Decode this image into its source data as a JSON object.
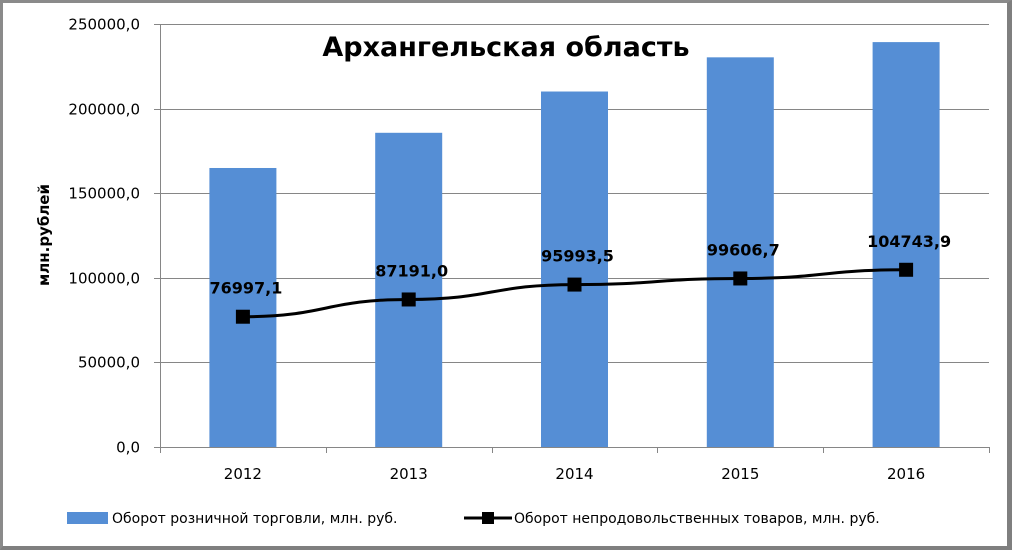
{
  "chart_data": {
    "type": "bar",
    "title": "Архангельская область",
    "xlabel": "",
    "ylabel": "млн.рублей",
    "ylim": [
      0,
      250000
    ],
    "yticks": [
      "0,0",
      "50000,0",
      "100000,0",
      "150000,0",
      "200000,0",
      "250000,0"
    ],
    "ytick_values": [
      0,
      50000,
      100000,
      150000,
      200000,
      250000
    ],
    "grid": true,
    "legend_position": "bottom",
    "categories": [
      "2012",
      "2013",
      "2014",
      "2015",
      "2016"
    ],
    "series": [
      {
        "name": "Оборот розничной торговли, млн. руб.",
        "type": "bar",
        "color": "#558ED5",
        "values": [
          164900,
          185700,
          210100,
          230300,
          239300
        ]
      },
      {
        "name": "Оборот непродовольственных товаров, млн. руб.",
        "type": "line",
        "color": "#000000",
        "marker": "square",
        "values": [
          76997.1,
          87191.0,
          95993.5,
          99606.7,
          104743.9
        ],
        "data_labels": [
          "76997,1",
          "87191,0",
          "95993,5",
          "99606,7",
          "104743,9"
        ]
      }
    ]
  },
  "colors": {
    "bar": "#558ED5",
    "line": "#000000",
    "grid": "#868686",
    "frame": "#808080"
  }
}
